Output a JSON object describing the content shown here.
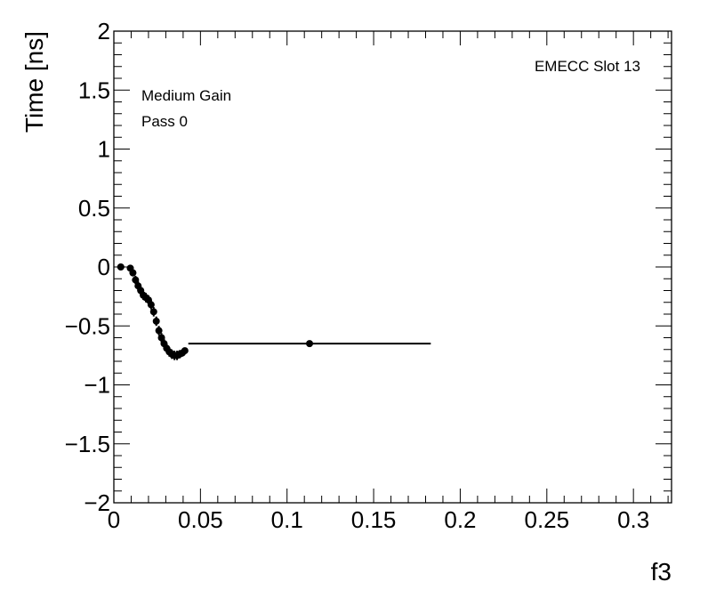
{
  "chart_data": {
    "type": "scatter",
    "xlabel": "f3",
    "ylabel": "Time [ns]",
    "xlim": [
      0,
      0.322
    ],
    "ylim": [
      -2,
      2
    ],
    "x_ticks": [
      0,
      0.05,
      0.1,
      0.15,
      0.2,
      0.25,
      0.3
    ],
    "x_tick_labels": [
      "0",
      "0.05",
      "0.1",
      "0.15",
      "0.2",
      "0.25",
      "0.3"
    ],
    "y_ticks": [
      -2,
      -1.5,
      -1,
      -0.5,
      0,
      0.5,
      1,
      1.5,
      2
    ],
    "y_tick_labels": [
      "−2",
      "−1.5",
      "−1",
      "−0.5",
      "0",
      "0.5",
      "1",
      "1.5",
      "2"
    ],
    "annotations": {
      "top_right": "EMECC Slot 13",
      "gain": "Medium Gain",
      "pass": "Pass 0"
    },
    "series": [
      {
        "x": [
          0.004,
          0.0095,
          0.011,
          0.0125,
          0.014,
          0.0155,
          0.017,
          0.0185,
          0.02,
          0.0215,
          0.023,
          0.0245,
          0.026,
          0.0275,
          0.029,
          0.0305,
          0.032,
          0.0335,
          0.035,
          0.0365,
          0.038,
          0.0395,
          0.041,
          0.113
        ],
        "y": [
          0.0,
          -0.01,
          -0.05,
          -0.11,
          -0.16,
          -0.2,
          -0.24,
          -0.26,
          -0.28,
          -0.32,
          -0.38,
          -0.46,
          -0.54,
          -0.6,
          -0.65,
          -0.69,
          -0.72,
          -0.74,
          -0.75,
          -0.75,
          -0.74,
          -0.73,
          -0.71,
          -0.65
        ],
        "x_err": [
          0.002,
          0.001,
          0.0007,
          0.0007,
          0.0007,
          0.0007,
          0.0007,
          0.0007,
          0.0007,
          0.0007,
          0.0007,
          0.0007,
          0.0007,
          0.0007,
          0.0007,
          0.0007,
          0.0007,
          0.0007,
          0.0007,
          0.0007,
          0.0007,
          0.0007,
          0.0008,
          0.07
        ],
        "y_err": [
          0.01,
          0.02,
          0.03,
          0.035,
          0.04,
          0.04,
          0.04,
          0.04,
          0.04,
          0.04,
          0.04,
          0.04,
          0.04,
          0.04,
          0.04,
          0.04,
          0.04,
          0.04,
          0.04,
          0.04,
          0.035,
          0.03,
          0.02,
          0.005
        ]
      }
    ]
  }
}
